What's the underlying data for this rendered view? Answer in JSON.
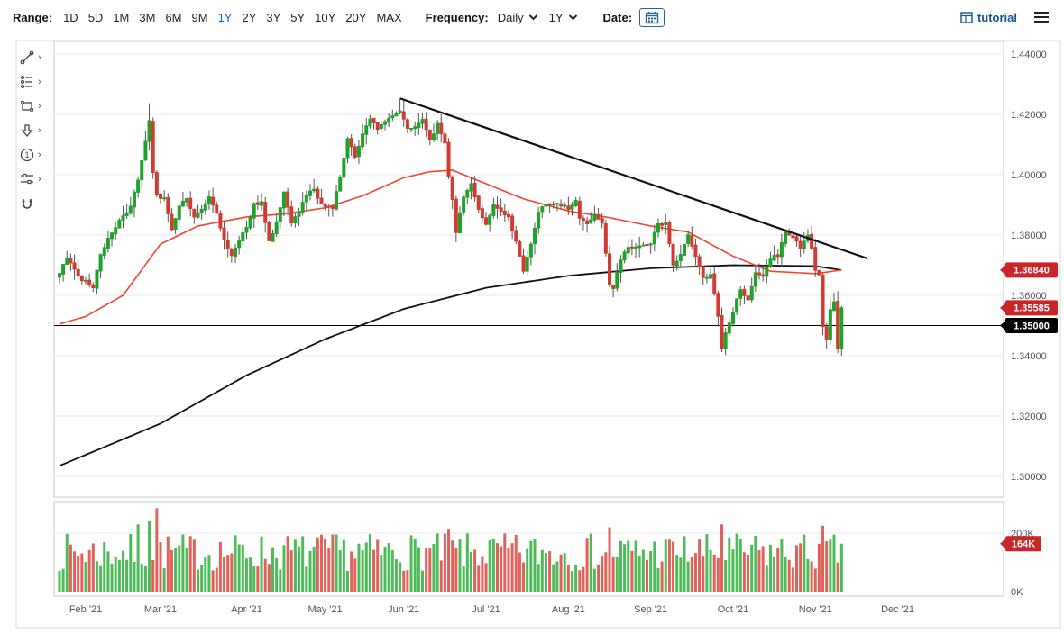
{
  "toolbar": {
    "range_label": "Range:",
    "range_options": [
      "1D",
      "5D",
      "1M",
      "3M",
      "6M",
      "9M",
      "1Y",
      "2Y",
      "3Y",
      "5Y",
      "10Y",
      "20Y",
      "MAX"
    ],
    "range_active": "1Y",
    "frequency_label": "Frequency:",
    "frequency_value": "Daily",
    "period_value": "1Y",
    "date_label": "Date:",
    "tutorial_label": "tutorial",
    "icons": [
      "calendar-icon",
      "caret-down-icon",
      "tutorial-grid-icon",
      "hamburger-icon"
    ],
    "active_color": "#0d62c9",
    "link_color": "#15568f"
  },
  "drawing_tools": [
    "trendline-tool",
    "pattern-lines-tool",
    "shape-tool",
    "arrow-tool",
    "annotation-number-tool",
    "sliders-settings-tool",
    "magnet-tool"
  ],
  "chart_data": {
    "type": "candlestick",
    "frequency": "Daily",
    "y_axis": {
      "side": "right",
      "min": 1.3,
      "max": 1.44,
      "tick_step": 0.02,
      "ticks": [
        "1.44000",
        "1.42000",
        "1.40000",
        "1.38000",
        "1.36000",
        "1.34000",
        "1.32000",
        "1.30000"
      ]
    },
    "x_axis": {
      "months": [
        {
          "label": "Feb '21",
          "i": 7
        },
        {
          "label": "Mar '21",
          "i": 27
        },
        {
          "label": "Apr '21",
          "i": 50
        },
        {
          "label": "May '21",
          "i": 71
        },
        {
          "label": "Jun '21",
          "i": 92
        },
        {
          "label": "Jul '21",
          "i": 114
        },
        {
          "label": "Aug '21",
          "i": 136
        },
        {
          "label": "Sep '21",
          "i": 158
        },
        {
          "label": "Oct '21",
          "i": 180
        },
        {
          "label": "Nov '21",
          "i": 202
        },
        {
          "label": "Dec '21",
          "i": 224
        }
      ]
    },
    "price_badges": [
      {
        "value": "1.36840",
        "price": 1.3684,
        "color": "#c9252b",
        "meaning": "ma-50-last-value"
      },
      {
        "value": "1.35585",
        "price": 1.35585,
        "color": "#c9252b",
        "meaning": "last-price"
      },
      {
        "value": "1.35000",
        "price": 1.35,
        "color": "#000000",
        "meaning": "horizontal-line-level"
      }
    ],
    "horizontal_line": {
      "price": 1.35,
      "color": "#000000"
    },
    "trendline": {
      "i1": 91,
      "p1": 1.4253,
      "i2": 216,
      "p2": 1.3722,
      "color": "#111111"
    },
    "ma50": {
      "color": "#f5432d",
      "keypoints": [
        [
          0,
          1.3505
        ],
        [
          7,
          1.353
        ],
        [
          17,
          1.36
        ],
        [
          27,
          1.377
        ],
        [
          37,
          1.383
        ],
        [
          50,
          1.386
        ],
        [
          60,
          1.387
        ],
        [
          71,
          1.389
        ],
        [
          81,
          1.393
        ],
        [
          92,
          1.399
        ],
        [
          99,
          1.401
        ],
        [
          105,
          1.4015
        ],
        [
          114,
          1.397
        ],
        [
          124,
          1.392
        ],
        [
          136,
          1.388
        ],
        [
          146,
          1.386
        ],
        [
          158,
          1.383
        ],
        [
          168,
          1.381
        ],
        [
          180,
          1.373
        ],
        [
          190,
          1.368
        ],
        [
          202,
          1.3672
        ],
        [
          209,
          1.3684
        ]
      ]
    },
    "ma200": {
      "color": "#111111",
      "keypoints": [
        [
          0,
          1.3035
        ],
        [
          27,
          1.3175
        ],
        [
          50,
          1.3335
        ],
        [
          71,
          1.3455
        ],
        [
          92,
          1.3555
        ],
        [
          114,
          1.3625
        ],
        [
          136,
          1.3665
        ],
        [
          158,
          1.369
        ],
        [
          180,
          1.37
        ],
        [
          202,
          1.3697
        ],
        [
          209,
          1.3684
        ]
      ]
    },
    "candles": {
      "count": 210,
      "seed": 12,
      "body_noise": 0.0012,
      "wick": 0.0035,
      "up_color": "#1fa32a",
      "down_color": "#d33a32",
      "wick_color": "#555555",
      "last_close": 1.35585,
      "close_keypoints": [
        [
          0,
          1.3675
        ],
        [
          2,
          1.372
        ],
        [
          4,
          1.3685
        ],
        [
          6,
          1.365
        ],
        [
          7,
          1.3655
        ],
        [
          9,
          1.3625
        ],
        [
          11,
          1.3735
        ],
        [
          14,
          1.381
        ],
        [
          16,
          1.385
        ],
        [
          19,
          1.389
        ],
        [
          21,
          1.3985
        ],
        [
          23,
          1.411
        ],
        [
          24,
          1.418
        ],
        [
          25,
          1.401
        ],
        [
          26,
          1.393
        ],
        [
          28,
          1.3925
        ],
        [
          30,
          1.382
        ],
        [
          32,
          1.389
        ],
        [
          34,
          1.3925
        ],
        [
          36,
          1.386
        ],
        [
          38,
          1.389
        ],
        [
          40,
          1.3925
        ],
        [
          42,
          1.387
        ],
        [
          44,
          1.378
        ],
        [
          46,
          1.3735
        ],
        [
          48,
          1.378
        ],
        [
          50,
          1.3825
        ],
        [
          52,
          1.39
        ],
        [
          54,
          1.3905
        ],
        [
          56,
          1.378
        ],
        [
          58,
          1.384
        ],
        [
          60,
          1.394
        ],
        [
          62,
          1.384
        ],
        [
          64,
          1.388
        ],
        [
          66,
          1.393
        ],
        [
          68,
          1.395
        ],
        [
          70,
          1.3905
        ],
        [
          71,
          1.39
        ],
        [
          73,
          1.389
        ],
        [
          75,
          1.399
        ],
        [
          77,
          1.4125
        ],
        [
          79,
          1.406
        ],
        [
          81,
          1.414
        ],
        [
          83,
          1.4185
        ],
        [
          85,
          1.415
        ],
        [
          87,
          1.418
        ],
        [
          89,
          1.419
        ],
        [
          91,
          1.421
        ],
        [
          93,
          1.415
        ],
        [
          95,
          1.4155
        ],
        [
          97,
          1.418
        ],
        [
          99,
          1.411
        ],
        [
          101,
          1.417
        ],
        [
          103,
          1.4105
        ],
        [
          104,
          1.399
        ],
        [
          105,
          1.392
        ],
        [
          106,
          1.381
        ],
        [
          108,
          1.393
        ],
        [
          110,
          1.397
        ],
        [
          112,
          1.388
        ],
        [
          114,
          1.383
        ],
        [
          116,
          1.39
        ],
        [
          118,
          1.388
        ],
        [
          120,
          1.386
        ],
        [
          122,
          1.378
        ],
        [
          124,
          1.368
        ],
        [
          126,
          1.377
        ],
        [
          128,
          1.387
        ],
        [
          130,
          1.3905
        ],
        [
          132,
          1.39
        ],
        [
          134,
          1.39
        ],
        [
          136,
          1.389
        ],
        [
          138,
          1.392
        ],
        [
          139,
          1.386
        ],
        [
          141,
          1.384
        ],
        [
          143,
          1.387
        ],
        [
          145,
          1.3835
        ],
        [
          147,
          1.364
        ],
        [
          148,
          1.3625
        ],
        [
          150,
          1.372
        ],
        [
          152,
          1.376
        ],
        [
          154,
          1.3755
        ],
        [
          156,
          1.3765
        ],
        [
          158,
          1.3775
        ],
        [
          160,
          1.3835
        ],
        [
          162,
          1.384
        ],
        [
          164,
          1.37
        ],
        [
          166,
          1.3735
        ],
        [
          168,
          1.3795
        ],
        [
          170,
          1.3735
        ],
        [
          172,
          1.3655
        ],
        [
          174,
          1.367
        ],
        [
          176,
          1.3535
        ],
        [
          177,
          1.343
        ],
        [
          178,
          1.3475
        ],
        [
          180,
          1.355
        ],
        [
          182,
          1.3615
        ],
        [
          184,
          1.359
        ],
        [
          186,
          1.367
        ],
        [
          188,
          1.366
        ],
        [
          190,
          1.3725
        ],
        [
          192,
          1.373
        ],
        [
          194,
          1.3815
        ],
        [
          196,
          1.379
        ],
        [
          198,
          1.376
        ],
        [
          200,
          1.3795
        ],
        [
          201,
          1.376
        ],
        [
          202,
          1.3685
        ],
        [
          203,
          1.367
        ],
        [
          204,
          1.3495
        ],
        [
          205,
          1.345
        ],
        [
          206,
          1.3555
        ],
        [
          207,
          1.358
        ],
        [
          208,
          1.342
        ],
        [
          209,
          1.35585
        ]
      ],
      "high_overrides": [
        [
          24,
          1.4237
        ],
        [
          91,
          1.425
        ],
        [
          92,
          1.4245
        ]
      ],
      "low_overrides": [
        [
          177,
          1.3412
        ],
        [
          205,
          1.3423
        ],
        [
          208,
          1.3408
        ]
      ]
    },
    "volume": {
      "axis_labels": [
        {
          "label": "200K",
          "value": 200000
        },
        {
          "label": "0K",
          "value": 0
        }
      ],
      "badge": "164K",
      "badge_value": 164000,
      "badge_color": "#c9252b",
      "base": 135000,
      "spread": 130000,
      "seed": 7,
      "spikes": [
        [
          21,
          230000
        ],
        [
          24,
          240000
        ],
        [
          26,
          285000
        ],
        [
          104,
          215000
        ],
        [
          147,
          220000
        ],
        [
          177,
          230000
        ],
        [
          204,
          225000
        ]
      ],
      "last": 164000,
      "up_color": "#4cbb58",
      "down_color": "#e0625a"
    },
    "colors": {
      "grid": "#e8e8e8",
      "frame": "#c9c9c9",
      "outer_frame": "#d9d9d9",
      "axis_text": "#555555"
    }
  }
}
